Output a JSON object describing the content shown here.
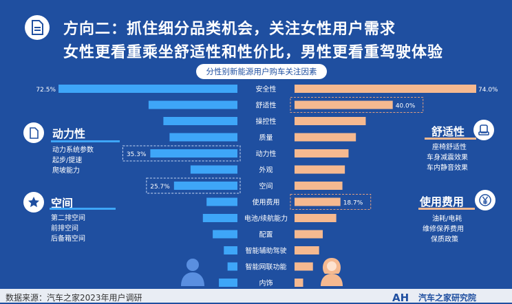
{
  "header": {
    "title_line1": "方向二：抓住细分品类机会，关注女性用户需求",
    "title_line2": "女性更看重乘坐舒适性和性价比，男性更看重驾驶体验"
  },
  "chart_data": {
    "type": "bar",
    "title": "分性别新能源用户购车关注因素",
    "categories": [
      "安全性",
      "舒适性",
      "操控性",
      "质量",
      "动力性",
      "外观",
      "空间",
      "使用费用",
      "电池/续航能力",
      "配置",
      "智能辅助驾驶",
      "智能网联功能",
      "内饰"
    ],
    "series": [
      {
        "values": [
          72.5,
          36.0,
          30.0,
          27.5,
          35.3,
          19.0,
          25.7,
          12.5,
          14.0,
          10.0,
          5.5,
          4.0,
          7.5
        ]
      },
      {
        "values": [
          74.0,
          40.0,
          29.0,
          25.0,
          22.0,
          20.5,
          19.5,
          18.7,
          17.0,
          11.5,
          10.0,
          7.5,
          3.5
        ]
      }
    ],
    "labeled": [
      {
        "series": 0,
        "index": 0,
        "label": "72.5%"
      },
      {
        "series": 0,
        "index": 4,
        "label": "35.3%",
        "box": true
      },
      {
        "series": 0,
        "index": 6,
        "label": "25.7%",
        "box": true
      },
      {
        "series": 1,
        "index": 0,
        "label": "74.0%"
      },
      {
        "series": 1,
        "index": 1,
        "label": "40.0%",
        "box": true
      },
      {
        "series": 1,
        "index": 7,
        "label": "18.7%",
        "box": true
      }
    ],
    "xlim": [
      0,
      75
    ],
    "colors": {
      "left": "#3ea6f8",
      "right": "#f5b990"
    },
    "icons": {
      "left": "male-user-icon",
      "right": "female-user-icon"
    }
  },
  "features": {
    "power": {
      "heading": "动力性",
      "items": [
        "动力系统参数",
        "起步/提速",
        "爬坡能力"
      ],
      "icon": "document-icon"
    },
    "space": {
      "heading": "空间",
      "items": [
        "第二排空间",
        "前排空间",
        "后备箱空间"
      ],
      "icon": "star-icon"
    },
    "comfort": {
      "heading": "舒适性",
      "items": [
        "座椅舒适性",
        "车身减震效果",
        "车内静音效果"
      ],
      "icon": "seat-icon"
    },
    "cost": {
      "heading": "使用费用",
      "items": [
        "油耗/电耗",
        "维修保养费用",
        "保质政策"
      ],
      "icon": "yen-icon"
    }
  },
  "footer": {
    "source": "数据来源：汽车之家2023年用户调研",
    "logo_text": "AH",
    "brand": "汽车之家研究院"
  },
  "theme": {
    "background": "#1f4fa0",
    "accent": "#ffffff",
    "rule_blue": "#3ea6f8",
    "rule_orange": "#f5b990"
  }
}
